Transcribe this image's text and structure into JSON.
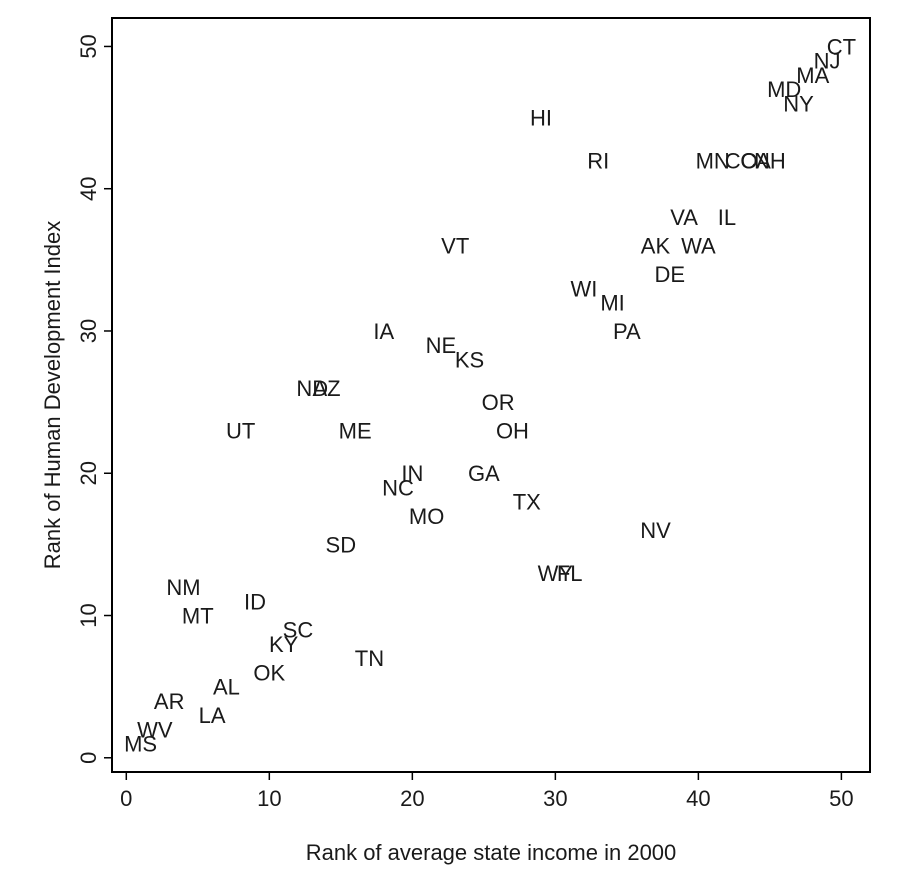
{
  "chart_data": {
    "type": "scatter",
    "xlabel": "Rank of average state income in 2000",
    "ylabel": "Rank of Human Development Index",
    "xlim": [
      -1,
      52
    ],
    "ylim": [
      -1,
      52
    ],
    "xticks": [
      0,
      10,
      20,
      30,
      40,
      50
    ],
    "yticks": [
      0,
      10,
      20,
      30,
      40,
      50
    ],
    "grid": false,
    "legend": "none",
    "marker": "state-abbreviation-text",
    "points": [
      {
        "label": "CT",
        "x": 50,
        "y": 50
      },
      {
        "label": "NJ",
        "x": 49,
        "y": 49
      },
      {
        "label": "MA",
        "x": 48,
        "y": 48
      },
      {
        "label": "MD",
        "x": 46,
        "y": 47
      },
      {
        "label": "NY",
        "x": 47,
        "y": 46
      },
      {
        "label": "HI",
        "x": 29,
        "y": 45
      },
      {
        "label": "RI",
        "x": 33,
        "y": 42
      },
      {
        "label": "MN",
        "x": 41,
        "y": 42
      },
      {
        "label": "CO",
        "x": 43,
        "y": 42
      },
      {
        "label": "CA",
        "x": 44,
        "y": 42
      },
      {
        "label": "NH",
        "x": 45,
        "y": 42
      },
      {
        "label": "VA",
        "x": 39,
        "y": 38
      },
      {
        "label": "IL",
        "x": 42,
        "y": 38
      },
      {
        "label": "AK",
        "x": 37,
        "y": 36
      },
      {
        "label": "WA",
        "x": 40,
        "y": 36
      },
      {
        "label": "VT",
        "x": 23,
        "y": 36
      },
      {
        "label": "DE",
        "x": 38,
        "y": 34
      },
      {
        "label": "WI",
        "x": 32,
        "y": 33
      },
      {
        "label": "MI",
        "x": 34,
        "y": 32
      },
      {
        "label": "PA",
        "x": 35,
        "y": 30
      },
      {
        "label": "IA",
        "x": 18,
        "y": 30
      },
      {
        "label": "NE",
        "x": 22,
        "y": 29
      },
      {
        "label": "KS",
        "x": 24,
        "y": 28
      },
      {
        "label": "AZ",
        "x": 14,
        "y": 26
      },
      {
        "label": "ND",
        "x": 13,
        "y": 26
      },
      {
        "label": "OR",
        "x": 26,
        "y": 25
      },
      {
        "label": "UT",
        "x": 8,
        "y": 23
      },
      {
        "label": "ME",
        "x": 16,
        "y": 23
      },
      {
        "label": "OH",
        "x": 27,
        "y": 23
      },
      {
        "label": "IN",
        "x": 20,
        "y": 20
      },
      {
        "label": "GA",
        "x": 25,
        "y": 20
      },
      {
        "label": "NC",
        "x": 19,
        "y": 19
      },
      {
        "label": "TX",
        "x": 28,
        "y": 18
      },
      {
        "label": "MO",
        "x": 21,
        "y": 17
      },
      {
        "label": "NV",
        "x": 37,
        "y": 16
      },
      {
        "label": "SD",
        "x": 15,
        "y": 15
      },
      {
        "label": "FL",
        "x": 31,
        "y": 13
      },
      {
        "label": "WY",
        "x": 30,
        "y": 13
      },
      {
        "label": "NM",
        "x": 4,
        "y": 12
      },
      {
        "label": "ID",
        "x": 9,
        "y": 11
      },
      {
        "label": "MT",
        "x": 5,
        "y": 10
      },
      {
        "label": "SC",
        "x": 12,
        "y": 9
      },
      {
        "label": "KY",
        "x": 11,
        "y": 8
      },
      {
        "label": "TN",
        "x": 17,
        "y": 7
      },
      {
        "label": "OK",
        "x": 10,
        "y": 6
      },
      {
        "label": "AL",
        "x": 7,
        "y": 5
      },
      {
        "label": "AR",
        "x": 3,
        "y": 4
      },
      {
        "label": "LA",
        "x": 6,
        "y": 3
      },
      {
        "label": "WV",
        "x": 2,
        "y": 2
      },
      {
        "label": "MS",
        "x": 1,
        "y": 1
      }
    ]
  }
}
